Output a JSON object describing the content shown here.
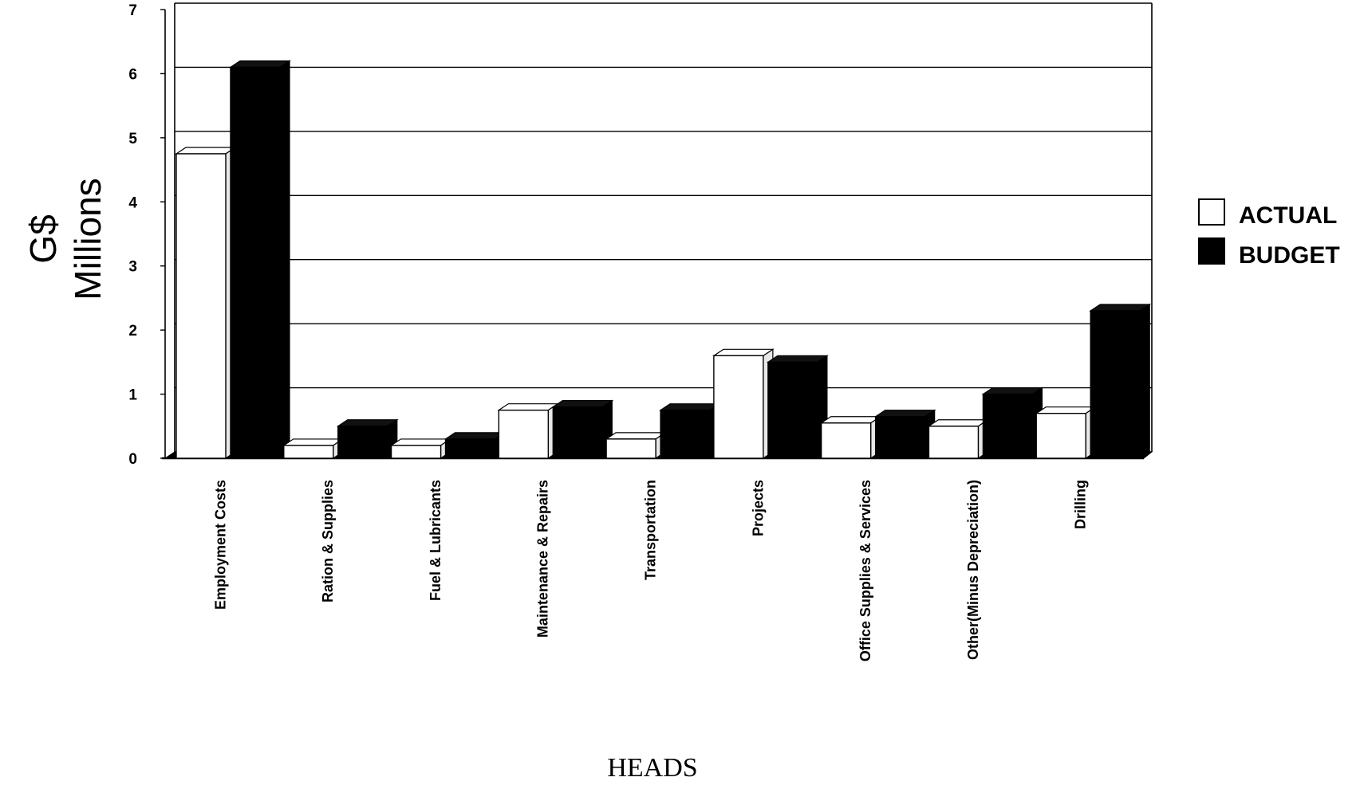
{
  "chart_data": {
    "type": "bar",
    "title": "",
    "xlabel": "HEADS",
    "ylabel_lines": [
      "G$",
      "Millions"
    ],
    "ylim": [
      0,
      7
    ],
    "yticks": [
      "0",
      "1",
      "2",
      "3",
      "4",
      "5",
      "6",
      "7"
    ],
    "grid": true,
    "legend_position": "right",
    "categories": [
      "Employment Costs",
      "Ration & Supplies",
      "Fuel & Lubricants",
      "Maintenance & Repairs",
      "Transportation",
      "Projects",
      "Office Supplies & Services",
      "Other(Minus Depreciation)",
      "Drilling"
    ],
    "series": [
      {
        "name": "ACTUAL",
        "color": "#ffffff",
        "values": [
          4.75,
          0.2,
          0.2,
          0.75,
          0.3,
          1.6,
          0.55,
          0.5,
          0.7
        ]
      },
      {
        "name": "BUDGET",
        "color": "#000000",
        "values": [
          6.1,
          0.5,
          0.3,
          0.8,
          0.75,
          1.5,
          0.65,
          1.0,
          2.3
        ]
      }
    ]
  }
}
